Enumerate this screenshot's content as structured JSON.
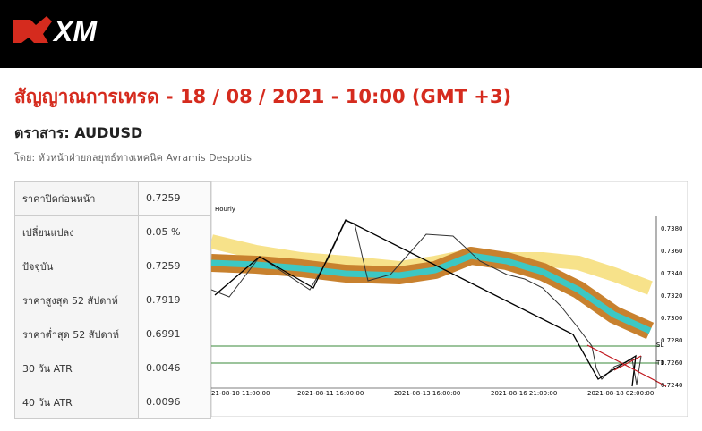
{
  "header": {
    "logo": "XM"
  },
  "title": "สัญญาณการเทรด - 18 / 08 / 2021 - 10:00 (GMT +3)",
  "instrument": "ตราสาร: AUDUSD",
  "byline": "โดย: หัวหน้าฝ่ายกลยุทธ์ทางเทคนิค Avramis Despotis",
  "table": {
    "rows": [
      [
        "ราคาปิดก่อนหน้า",
        "0.7259"
      ],
      [
        "เปลี่ยนแปลง",
        "0.05 %"
      ],
      [
        "ปัจจุบัน",
        "0.7259"
      ],
      [
        "ราคาสูงสุด 52 สัปดาห์",
        "0.7919"
      ],
      [
        "ราคาต่ำสุด 52 สัปดาห์",
        "0.6991"
      ],
      [
        "30 วัน ATR",
        "0.0046"
      ],
      [
        "40 วัน ATR",
        "0.0096"
      ]
    ]
  },
  "chart": {
    "timeframe": "Hourly",
    "yticks": [
      "0.7380",
      "0.7360",
      "0.7340",
      "0.7320",
      "0.7300",
      "0.7280",
      "0.7260",
      "0.7240"
    ],
    "xticks": [
      "21-08-10 11:00:00",
      "2021-08-11 16:00:00",
      "2021-08-13 16:00:00",
      "2021-08-16 21:00:00",
      "2021-08-18 02:00:00"
    ],
    "sl_label": "SL",
    "t1_label": "T1"
  }
}
